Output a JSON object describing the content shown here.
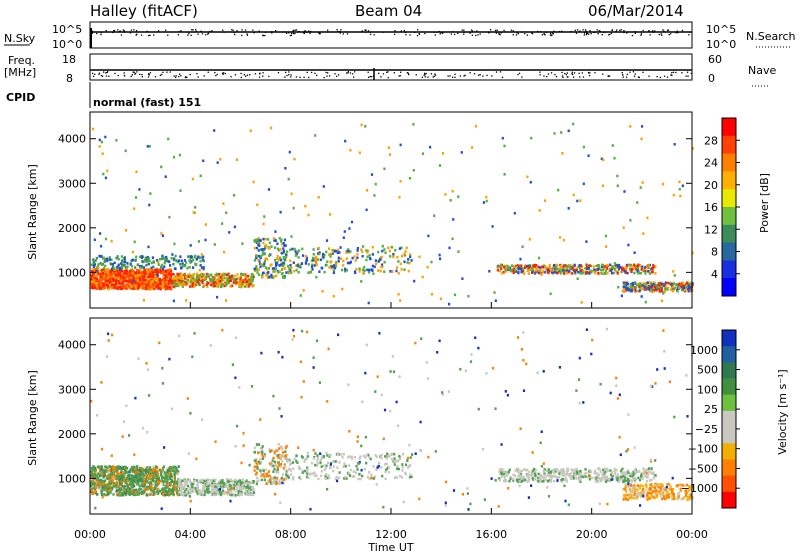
{
  "header": {
    "station": "Halley (fitACF)",
    "beam": "Beam 04",
    "date": "06/Mar/2014"
  },
  "top_panels": {
    "nsky_label": "N.Sky",
    "nsky_ticks": [
      "10^5",
      "10^0"
    ],
    "nsearch_label": "N.Search",
    "nsearch_ticks": [
      "10^5",
      "10^0"
    ],
    "freq_label_line1": "Freq.",
    "freq_label_line2": "[MHz]",
    "freq_ticks": [
      "18",
      "8"
    ],
    "nave_label": "Nave",
    "nave_ticks": [
      "60",
      "0"
    ],
    "cpid_label": "CPID",
    "cpid_text": "normal (fast) 151"
  },
  "chart_data": [
    {
      "type": "heatmap",
      "name": "power",
      "ylabel": "Slant Range [km]",
      "xlabel": "Time UT",
      "y_ticks": [
        "1000",
        "2000",
        "3000",
        "4000"
      ],
      "ylim": [
        200,
        4600
      ],
      "colorbar_label": "Power [dB]",
      "colorbar_ticks": [
        "28",
        "24",
        "20",
        "16",
        "12",
        "8",
        "4"
      ],
      "colorbar_colors": [
        "#ff0000",
        "#ff4000",
        "#ff8000",
        "#ffb000",
        "#e8e800",
        "#70c040",
        "#3c8c5a",
        "#2868a0",
        "#1830e0",
        "#0000ff"
      ],
      "colors": {
        "high": "#ff2000",
        "mid": "#ffa000",
        "low": "#2050d0",
        "green": "#50b040"
      }
    },
    {
      "type": "heatmap",
      "name": "velocity",
      "ylabel": "Slant Range [km]",
      "xlabel": "Time UT",
      "y_ticks": [
        "1000",
        "2000",
        "3000",
        "4000"
      ],
      "ylim": [
        200,
        4600
      ],
      "colorbar_label": "Velocity [m s⁻¹]",
      "colorbar_ticks": [
        "1000",
        "500",
        "100",
        "25",
        "−25",
        "−100",
        "−500",
        "−1000"
      ],
      "colorbar_colors": [
        "#1030c0",
        "#2060a0",
        "#307850",
        "#409040",
        "#70c040",
        "#c8c8c0",
        "#c8c8c0",
        "#f0b000",
        "#ff8000",
        "#ff5000",
        "#ff0000"
      ],
      "colors": {
        "ground": "#c8c8c0",
        "pos": "#50a050",
        "neg": "#ff8000"
      }
    }
  ],
  "x_axis": {
    "label": "Time UT",
    "ticks": [
      "00:00",
      "04:00",
      "08:00",
      "12:00",
      "16:00",
      "20:00",
      "00:00"
    ]
  }
}
